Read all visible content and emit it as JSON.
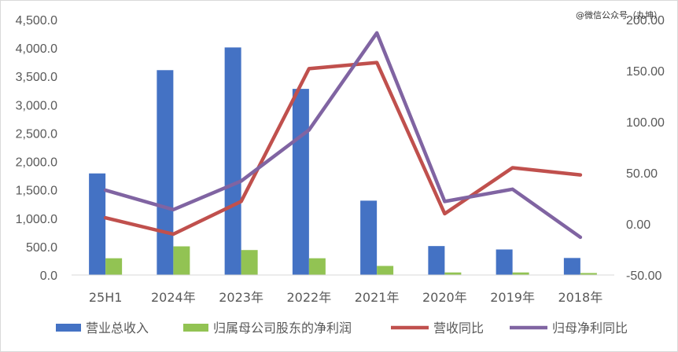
{
  "watermark": "@微信公众号（丸坤）",
  "chart_data": {
    "type": "bar+line",
    "categories": [
      "25H1",
      "2024年",
      "2023年",
      "2022年",
      "2021年",
      "2020年",
      "2019年",
      "2018年"
    ],
    "y_left": {
      "ylim": [
        0,
        4500
      ],
      "ticks": [
        "0.0",
        "500.0",
        "1,000.0",
        "1,500.0",
        "2,000.0",
        "2,500.0",
        "3,000.0",
        "3,500.0",
        "4,000.0",
        "4,500.0"
      ]
    },
    "y_right": {
      "ylim": [
        -50,
        200
      ],
      "ticks": [
        "-50.00",
        "0.00",
        "50.00",
        "100.00",
        "150.00",
        "200.00"
      ]
    },
    "series": [
      {
        "name": "营业总收入",
        "kind": "bar",
        "axis": "left",
        "color": "#4472c4",
        "values": [
          1790,
          3610,
          4010,
          3280,
          1310,
          510,
          450,
          300
        ]
      },
      {
        "name": "归属母公司股东的净利润",
        "kind": "bar",
        "axis": "left",
        "color": "#92c353",
        "values": [
          295,
          505,
          440,
          295,
          160,
          45,
          45,
          35
        ]
      },
      {
        "name": "营收同比",
        "kind": "line",
        "axis": "right",
        "color": "#c0504d",
        "values": [
          6,
          -10,
          22,
          152,
          158,
          10,
          55,
          48
        ]
      },
      {
        "name": "归母净利同比",
        "kind": "line",
        "axis": "right",
        "color": "#8064a2",
        "values": [
          33,
          14,
          42,
          92,
          187,
          22,
          34,
          -13
        ]
      }
    ],
    "legend": "bottom",
    "grid": false
  }
}
